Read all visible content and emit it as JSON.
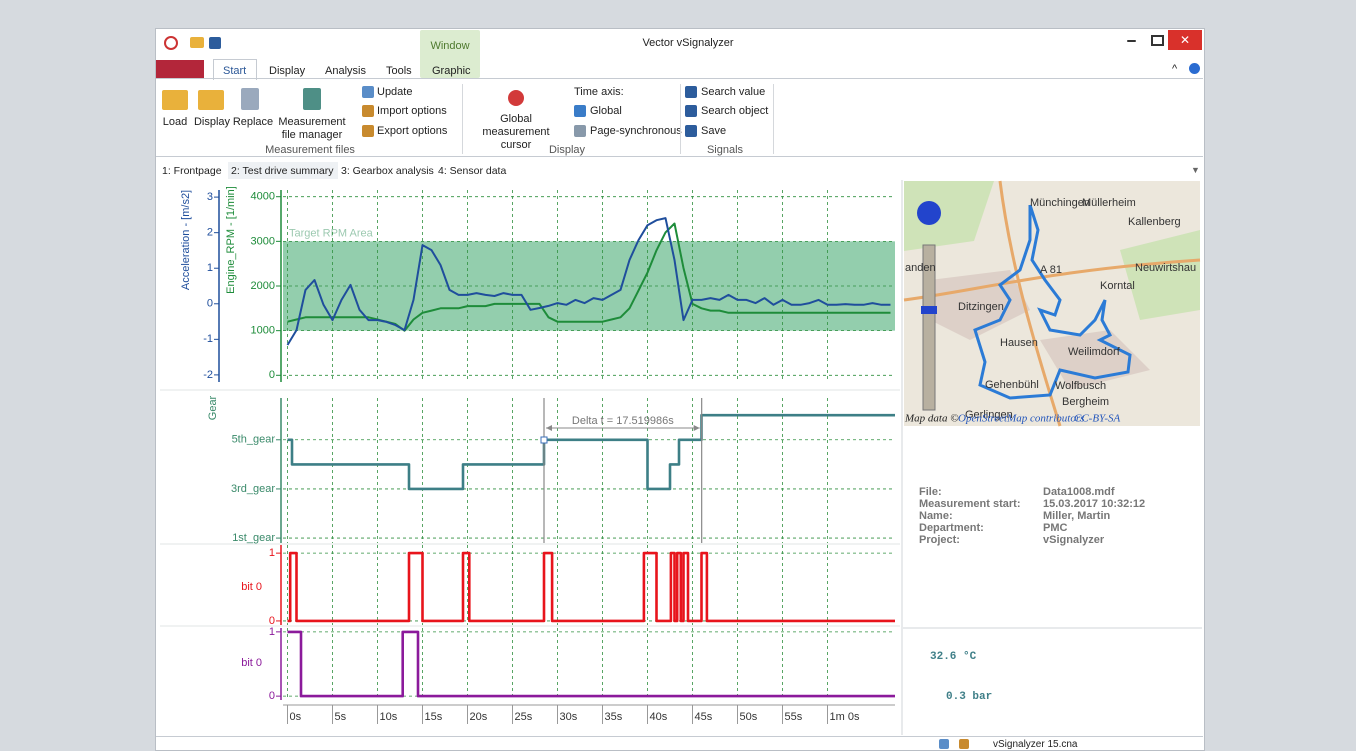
{
  "window": {
    "title": "Vector vSignalyzer",
    "context_group": "Window"
  },
  "ribbon": {
    "tabs": [
      "Start",
      "Display",
      "Analysis",
      "Tools",
      "Graphic"
    ],
    "groups": [
      {
        "label": "Measurement files",
        "buttons": [
          "Load",
          "Display",
          "Replace",
          "Measurement file manager"
        ],
        "small_buttons": [
          "Update",
          "Import options",
          "Export options"
        ]
      },
      {
        "label": "Display",
        "buttons": [
          "Global measurement cursor"
        ],
        "small_buttons": [
          "Time axis:",
          "Global",
          "Page-synchronous"
        ]
      },
      {
        "label": "Signals",
        "small_buttons": [
          "Search value",
          "Search object",
          "Save"
        ]
      }
    ]
  },
  "page_tabs": [
    "1: Frontpage",
    "2: Test drive summary",
    "3: Gearbox analysis",
    "4: Sensor data"
  ],
  "chart_data": [
    {
      "type": "line",
      "xlim": [
        -0.5,
        67.5
      ],
      "ylim": [
        -150,
        4150
      ],
      "yticks": [
        0,
        1000,
        2000,
        3000,
        4000
      ],
      "ylabel": "Engine_RPM - [1/min]",
      "axis_color": "#1e8c3a",
      "y2lim": [
        -2.2,
        3.2
      ],
      "y2ticks": [
        -2,
        -1,
        0,
        1,
        2,
        3
      ],
      "y2label": "Acceleration - [m/s2]",
      "y2_axis_color": "#1f4e9c",
      "grid": true,
      "bands": [
        {
          "label": "Target RPM Area",
          "from": 1000,
          "to": 3000,
          "color": "#3aa66a"
        }
      ],
      "x": [
        0,
        1,
        2,
        3,
        4,
        5,
        6,
        7,
        8,
        9,
        10,
        11,
        12,
        13,
        14,
        15,
        16,
        17,
        18,
        19,
        20,
        21,
        22,
        23,
        24,
        25,
        26,
        27,
        28,
        29,
        30,
        31,
        32,
        33,
        34,
        35,
        36,
        37,
        38,
        39,
        40,
        41,
        42,
        43,
        44,
        45,
        46,
        47,
        48,
        49,
        50,
        51,
        52,
        53,
        54,
        55,
        56,
        57,
        58,
        59,
        60,
        61,
        62,
        63,
        64,
        65,
        66,
        67
      ],
      "series": [
        {
          "color": "#1e8c3a",
          "values": [
            1200,
            1250,
            1300,
            1300,
            1300,
            1300,
            1300,
            1300,
            1300,
            1300,
            1250,
            1200,
            1150,
            1000,
            1250,
            1400,
            1450,
            1500,
            1500,
            1500,
            1550,
            1550,
            1550,
            1600,
            1600,
            1600,
            1600,
            1600,
            1600,
            1300,
            1200,
            1200,
            1200,
            1200,
            1200,
            1200,
            1250,
            1300,
            1500,
            1900,
            2300,
            2800,
            3200,
            3400,
            2400,
            1600,
            1500,
            1450,
            1450,
            1400,
            1400,
            1400,
            1400,
            1400,
            1400,
            1400,
            1400,
            1400,
            1400,
            1400,
            1400,
            1400,
            1400,
            1400,
            1400,
            1400,
            1400,
            1400
          ]
        },
        {
          "color": "#1f4e9c",
          "axis": "y2",
          "values": [
            -1.16,
            -0.74,
            0.39,
            0.67,
            -0.03,
            -0.46,
            0.11,
            0.53,
            -0.17,
            -0.46,
            -0.46,
            -0.51,
            -0.6,
            -0.74,
            0.11,
            1.65,
            1.51,
            1.09,
            0.39,
            0.25,
            0.25,
            0.3,
            0.25,
            0.22,
            0.3,
            0.25,
            0.25,
            -0.17,
            -0.12,
            -0.06,
            0.02,
            -0.03,
            0.11,
            0.02,
            0.16,
            0.11,
            0.25,
            0.39,
            1.23,
            1.79,
            2.21,
            2.35,
            2.41,
            1.23,
            -0.46,
            0.11,
            0.11,
            0.16,
            0.11,
            0.25,
            0.11,
            0.11,
            0.02,
            0.16,
            -0.03,
            0.11,
            -0.03,
            -0.03,
            0.02,
            0.11,
            -0.03,
            -0.03,
            -0.01,
            -0.03,
            -0.03,
            0.02,
            -0.03,
            -0.03
          ]
        }
      ]
    },
    {
      "type": "line",
      "xlim": [
        -0.5,
        67.5
      ],
      "ylim": [
        0.8,
        6.7
      ],
      "yticks": [
        {
          "value": 1,
          "label": "1st_gear"
        },
        {
          "value": 3,
          "label": "3rd_gear"
        },
        {
          "value": 5,
          "label": "5th_gear"
        }
      ],
      "ylabel": "Gear",
      "axis_color": "#3a8a6a",
      "grid": true,
      "x": [
        0,
        0.5,
        0.5,
        13.5,
        13.5,
        19.5,
        19.5,
        28.5,
        28.5,
        40,
        40,
        42.5,
        42.5,
        43.5,
        43.5,
        46,
        46,
        67.5
      ],
      "series": [
        {
          "color": "#3d7f86",
          "values": [
            5,
            5,
            4,
            4,
            3,
            3,
            4,
            4,
            5,
            5,
            3,
            3,
            4,
            4,
            5,
            5,
            6,
            6
          ]
        }
      ],
      "cursors": [
        28.5,
        46.02
      ],
      "cursor_label": "Delta t = 17.519986s"
    },
    {
      "type": "line",
      "xlim": [
        -0.5,
        67.5
      ],
      "ylim": [
        -0.06,
        1.12
      ],
      "yticks": [
        0,
        1
      ],
      "ylabel": "bit 0",
      "axis_color": "#e8141c",
      "grid": true,
      "x": [
        0,
        0.3,
        0.3,
        1,
        1,
        13.5,
        13.5,
        15,
        15,
        19.5,
        19.5,
        20.2,
        20.2,
        28.5,
        28.5,
        29.4,
        29.4,
        39.6,
        39.6,
        41,
        41,
        42.6,
        42.6,
        43,
        43,
        43.3,
        43.3,
        43.7,
        43.7,
        44,
        44,
        44.5,
        44.5,
        46,
        46,
        46.6,
        46.6,
        67.5
      ],
      "series": [
        {
          "color": "#e8141c",
          "values": [
            0,
            0,
            1,
            1,
            0,
            0,
            1,
            1,
            0,
            0,
            1,
            1,
            0,
            0,
            1,
            1,
            0,
            0,
            1,
            1,
            0,
            0,
            1,
            1,
            0,
            0,
            1,
            1,
            0,
            0,
            1,
            1,
            0,
            0,
            1,
            1,
            0,
            0
          ]
        }
      ]
    },
    {
      "type": "line",
      "xlim": [
        -0.5,
        67.5
      ],
      "ylim": [
        -0.06,
        1.06
      ],
      "yticks": [
        0,
        1
      ],
      "ylabel": "bit 0",
      "axis_color": "#8b1a9b",
      "grid": true,
      "x": [
        0,
        1.5,
        1.5,
        12.8,
        12.8,
        14.5,
        14.5,
        67.5
      ],
      "series": [
        {
          "color": "#8b1a9b",
          "values": [
            1,
            1,
            0,
            0,
            1,
            1,
            0,
            0
          ]
        }
      ],
      "xticks": [
        {
          "value": 0,
          "label": "0s"
        },
        {
          "value": 5,
          "label": "5s"
        },
        {
          "value": 10,
          "label": "10s"
        },
        {
          "value": 15,
          "label": "15s"
        },
        {
          "value": 20,
          "label": "20s"
        },
        {
          "value": 25,
          "label": "25s"
        },
        {
          "value": 30,
          "label": "30s"
        },
        {
          "value": 35,
          "label": "35s"
        },
        {
          "value": 40,
          "label": "40s"
        },
        {
          "value": 45,
          "label": "45s"
        },
        {
          "value": 50,
          "label": "50s"
        },
        {
          "value": 55,
          "label": "55s"
        },
        {
          "value": 60,
          "label": "1m 0s"
        }
      ]
    }
  ],
  "map": {
    "labels": [
      "Münchingen",
      "Müllerheim",
      "Kallenberg",
      "Neuwirtshau",
      "Korntal",
      "Ditzingen",
      "Hausen",
      "Weilimdorf",
      "Gehenbühl",
      "Wolfbusch",
      "Bergheim",
      "Gerlingen",
      "anden",
      "A 81"
    ],
    "attribution": [
      "Map data ©",
      "OpenStreetMap contributors",
      "CC-BY-SA"
    ]
  },
  "info": {
    "rows": [
      [
        "File:",
        "Data1008.mdf"
      ],
      [
        "Measurement start:",
        "15.03.2017 10:32:12"
      ],
      [
        "Name:",
        "Miller, Martin"
      ],
      [
        "Department:",
        "PMC"
      ],
      [
        "Project:",
        "vSignalyzer"
      ]
    ]
  },
  "displays": [
    "32.6 °C",
    "0.3 bar"
  ],
  "status": "vSignalyzer 15.cna"
}
